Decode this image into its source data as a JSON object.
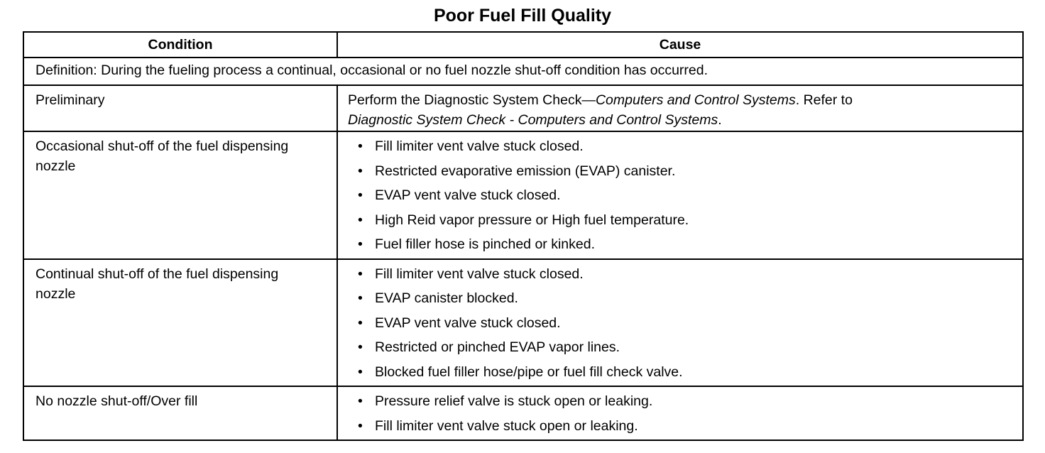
{
  "title": "Poor Fuel Fill Quality",
  "headers": {
    "condition": "Condition",
    "cause": "Cause"
  },
  "definition": "Definition: During the fueling process a continual, occasional or no fuel nozzle shut-off condition has occurred.",
  "preliminary": {
    "condition": "Preliminary",
    "cause_prefix": "Perform the Diagnostic System Check—",
    "cause_italic1": "Computers and Control Systems",
    "cause_mid": ". Refer to",
    "cause_italic2": "Diagnostic System Check - Computers and Control Systems",
    "cause_end": "."
  },
  "rows": [
    {
      "condition": "Occasional shut-off of the fuel dispensing nozzle",
      "causes": [
        "Fill limiter vent valve stuck closed.",
        "Restricted evaporative emission (EVAP) canister.",
        "EVAP vent valve stuck closed.",
        "High Reid vapor pressure or High fuel temperature.",
        "Fuel filler hose is pinched or kinked."
      ]
    },
    {
      "condition": "Continual shut-off of the fuel dispensing nozzle",
      "causes": [
        "Fill limiter vent valve stuck closed.",
        "EVAP canister blocked.",
        "EVAP vent valve stuck closed.",
        "Restricted or pinched EVAP vapor lines.",
        "Blocked fuel filler hose/pipe or fuel fill check valve."
      ]
    },
    {
      "condition": "No nozzle shut-off/Over fill",
      "causes": [
        "Pressure relief valve is stuck open or leaking.",
        "Fill limiter vent valve stuck open or leaking."
      ]
    }
  ]
}
